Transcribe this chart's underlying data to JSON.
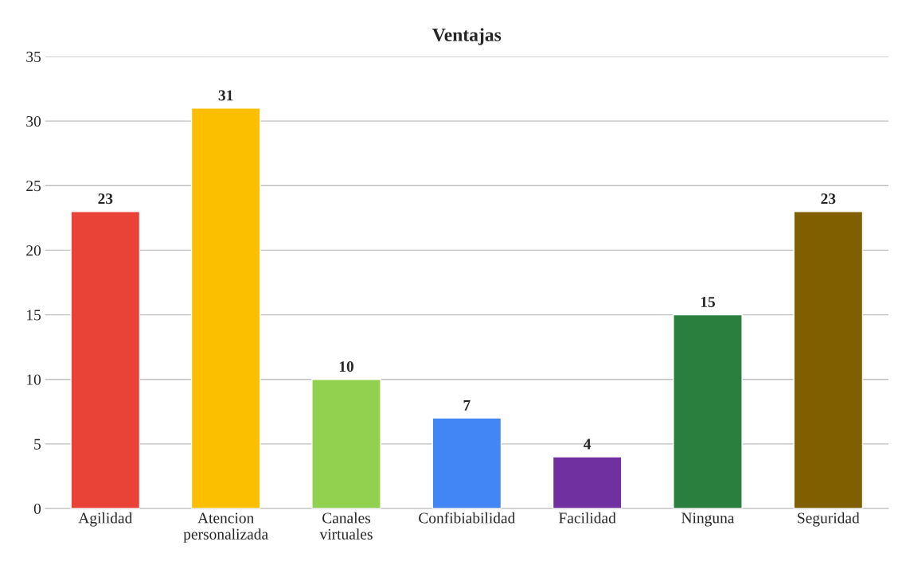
{
  "chart_data": {
    "type": "bar",
    "title": "Ventajas",
    "categories": [
      "Agilidad",
      "Atencion personalizada",
      "Canales virtuales",
      "Confibiabilidad",
      "Facilidad",
      "Ninguna",
      "Seguridad"
    ],
    "values": [
      23,
      31,
      10,
      7,
      4,
      15,
      23
    ],
    "colors": [
      "#e84336",
      "#fbbf00",
      "#92d050",
      "#4285f4",
      "#7030a0",
      "#2a7f3f",
      "#7f5f00"
    ],
    "ylim": [
      0,
      35
    ],
    "yticks": [
      0,
      5,
      10,
      15,
      20,
      25,
      30,
      35
    ],
    "grid": "y",
    "data_labels": true,
    "legend": false
  }
}
